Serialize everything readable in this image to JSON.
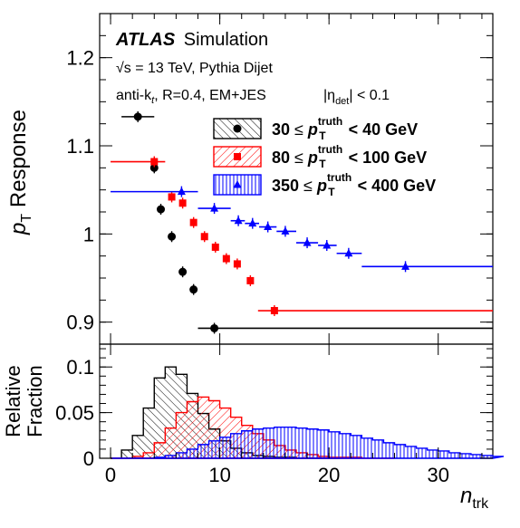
{
  "chart_data": [
    {
      "type": "scatter",
      "panel": "top",
      "ylabel_main": "p",
      "ylabel_sub": "T",
      "ylabel_rest": " Response",
      "ylim": [
        0.875,
        1.25
      ],
      "xlim": [
        -1,
        35
      ],
      "yticks": [
        0.9,
        1,
        1.1,
        1.2
      ],
      "ytick_labels": [
        "0.9",
        "1",
        "1.1",
        "1.2"
      ],
      "annotations": {
        "atlas": "ATLAS",
        "simulation": "Simulation",
        "energy": "√s = 13 TeV, Pythia Dijet",
        "jets_prefix": "anti-k",
        "jets_sub": "t",
        "jets_R": ", R=0.4, EM+JES",
        "eta_pre": "|η",
        "eta_sub": "det",
        "eta_post": "| < 0.1"
      },
      "legend": [
        {
          "low": "30",
          "high": "40 GeV",
          "color": "#000000",
          "marker": "circle",
          "hatch": "diag-left"
        },
        {
          "low": "80",
          "high": "100 GeV",
          "color": "#ff0000",
          "marker": "square",
          "hatch": "diag-right"
        },
        {
          "low": "350",
          "high": "400 GeV",
          "color": "#0000ff",
          "marker": "triangle",
          "hatch": "vertical"
        }
      ],
      "legend_text": {
        "le": "≤",
        "p": "p",
        "sub": "T",
        "sup": "truth",
        "lt": "<"
      },
      "series": [
        {
          "color": "#000000",
          "marker": "circle",
          "points": [
            {
              "x": 2.5,
              "xlo": 1,
              "xhi": 4,
              "y": 1.133
            },
            {
              "x": 4,
              "xlo": 4,
              "xhi": 4,
              "y": 1.075
            },
            {
              "x": 4.6,
              "xlo": 4.6,
              "xhi": 4.6,
              "y": 1.028
            },
            {
              "x": 5.6,
              "xlo": 5.6,
              "xhi": 5.6,
              "y": 0.997
            },
            {
              "x": 6.6,
              "xlo": 6.6,
              "xhi": 6.6,
              "y": 0.957
            },
            {
              "x": 7.6,
              "xlo": 7.6,
              "xhi": 7.6,
              "y": 0.937
            },
            {
              "x": 9.5,
              "xlo": 8,
              "xhi": 35,
              "y": 0.893
            }
          ]
        },
        {
          "color": "#ff0000",
          "marker": "square",
          "points": [
            {
              "x": 4,
              "xlo": 0,
              "xhi": 5,
              "y": 1.082
            },
            {
              "x": 5.6,
              "xlo": 5.6,
              "xhi": 5.6,
              "y": 1.042
            },
            {
              "x": 6.6,
              "xlo": 6.6,
              "xhi": 6.6,
              "y": 1.035
            },
            {
              "x": 7.6,
              "xlo": 7.6,
              "xhi": 7.6,
              "y": 1.013
            },
            {
              "x": 8.6,
              "xlo": 8.6,
              "xhi": 8.6,
              "y": 0.997
            },
            {
              "x": 9.6,
              "xlo": 9.6,
              "xhi": 9.6,
              "y": 0.985
            },
            {
              "x": 10.6,
              "xlo": 10.6,
              "xhi": 10.6,
              "y": 0.972
            },
            {
              "x": 11.6,
              "xlo": 11.6,
              "xhi": 11.6,
              "y": 0.966
            },
            {
              "x": 12.8,
              "xlo": 12.8,
              "xhi": 12.8,
              "y": 0.947
            },
            {
              "x": 15,
              "xlo": 13.5,
              "xhi": 35,
              "y": 0.913
            }
          ]
        },
        {
          "color": "#0000ff",
          "marker": "triangle",
          "points": [
            {
              "x": 6.5,
              "xlo": 0,
              "xhi": 8,
              "y": 1.048
            },
            {
              "x": 9.5,
              "xlo": 8,
              "xhi": 11,
              "y": 1.029
            },
            {
              "x": 11.7,
              "xlo": 11,
              "xhi": 12.3,
              "y": 1.015
            },
            {
              "x": 13,
              "xlo": 12.3,
              "xhi": 13.6,
              "y": 1.012
            },
            {
              "x": 14.4,
              "xlo": 13.6,
              "xhi": 15.2,
              "y": 1.008
            },
            {
              "x": 16,
              "xlo": 15.2,
              "xhi": 17,
              "y": 1.003
            },
            {
              "x": 18,
              "xlo": 17,
              "xhi": 19,
              "y": 0.99
            },
            {
              "x": 19.8,
              "xlo": 19,
              "xhi": 20.7,
              "y": 0.987
            },
            {
              "x": 21.8,
              "xlo": 20.7,
              "xhi": 23,
              "y": 0.978
            },
            {
              "x": 27,
              "xlo": 23,
              "xhi": 35,
              "y": 0.963
            }
          ]
        }
      ]
    },
    {
      "type": "area",
      "panel": "bottom",
      "ylabel_line1": "Relative",
      "ylabel_line2": "Fraction",
      "xlabel_main": "n",
      "xlabel_sub": "trk",
      "xlim": [
        -1,
        35
      ],
      "ylim": [
        0,
        0.125
      ],
      "yticks": [
        0,
        0.05,
        0.1
      ],
      "ytick_labels": [
        "0",
        "0.05",
        "0.1"
      ],
      "xticks": [
        0,
        10,
        20,
        30
      ],
      "xtick_labels": [
        "0",
        "10",
        "20",
        "30"
      ],
      "series": [
        {
          "color": "#000000",
          "hatch": "diag-left",
          "x": [
            0,
            1,
            2,
            3,
            4,
            5,
            6,
            7,
            8,
            9,
            10,
            11,
            12,
            13,
            14,
            15,
            16,
            17,
            18,
            19,
            20
          ],
          "values": [
            0,
            0.009,
            0.025,
            0.055,
            0.088,
            0.1,
            0.092,
            0.071,
            0.049,
            0.032,
            0.019,
            0.011,
            0.006,
            0.003,
            0.002,
            0.001,
            0.001,
            0,
            0,
            0,
            0
          ]
        },
        {
          "color": "#ff0000",
          "hatch": "diag-right",
          "x": [
            0,
            1,
            2,
            3,
            4,
            5,
            6,
            7,
            8,
            9,
            10,
            11,
            12,
            13,
            14,
            15,
            16,
            17,
            18,
            19,
            20,
            21,
            22,
            23,
            24,
            25
          ],
          "values": [
            0,
            0,
            0.002,
            0.006,
            0.017,
            0.033,
            0.05,
            0.062,
            0.067,
            0.063,
            0.055,
            0.045,
            0.036,
            0.027,
            0.02,
            0.014,
            0.009,
            0.006,
            0.004,
            0.002,
            0.001,
            0.001,
            0.001,
            0,
            0,
            0
          ]
        },
        {
          "color": "#0000ff",
          "hatch": "vertical",
          "x": [
            0,
            1,
            2,
            3,
            4,
            5,
            6,
            7,
            8,
            9,
            10,
            11,
            12,
            13,
            14,
            15,
            16,
            17,
            18,
            19,
            20,
            21,
            22,
            23,
            24,
            25,
            26,
            27,
            28,
            29,
            30,
            31,
            32,
            33,
            34,
            35
          ],
          "values": [
            0,
            0,
            0,
            0,
            0.001,
            0.003,
            0.006,
            0.01,
            0.015,
            0.019,
            0.023,
            0.027,
            0.03,
            0.032,
            0.033,
            0.034,
            0.034,
            0.033,
            0.032,
            0.031,
            0.029,
            0.027,
            0.025,
            0.022,
            0.02,
            0.017,
            0.015,
            0.013,
            0.011,
            0.009,
            0.008,
            0.006,
            0.005,
            0.004,
            0.003,
            0.002
          ]
        }
      ]
    }
  ]
}
